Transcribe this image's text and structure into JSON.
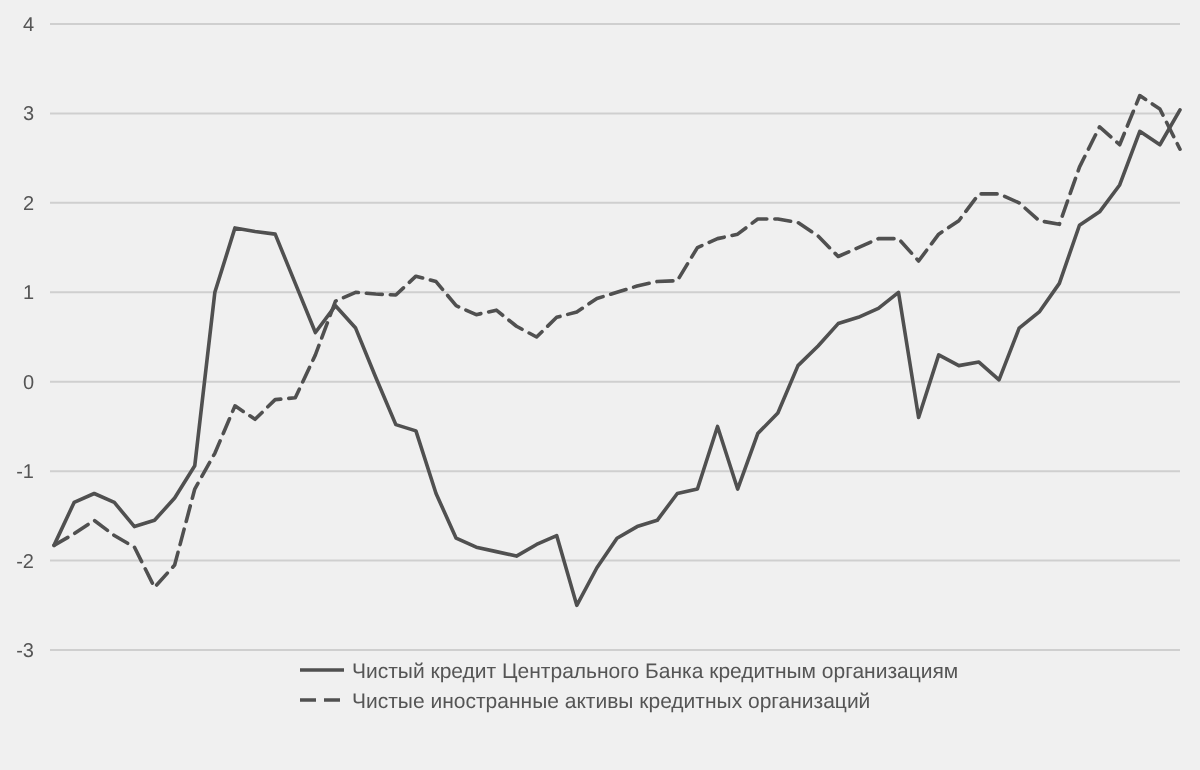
{
  "chart_data": {
    "type": "line",
    "categories": [
      null,
      null,
      null,
      null,
      null,
      null,
      null,
      null,
      null,
      null,
      null,
      null,
      null,
      null,
      null,
      null,
      null,
      null,
      null,
      null,
      null,
      null,
      null,
      null,
      null,
      null,
      null,
      null,
      null,
      null,
      null,
      null,
      null,
      null,
      null,
      null,
      null,
      null,
      null,
      null,
      null,
      null,
      null,
      null,
      null,
      null,
      null,
      null,
      null,
      null,
      null,
      null,
      null,
      null,
      null,
      null,
      null
    ],
    "series": [
      {
        "name": "Чистый кредит Центрального Банка кредитным организациям",
        "color": "#505050",
        "line_style": "solid",
        "values": [
          -1.83,
          -1.35,
          -1.25,
          -1.35,
          -1.62,
          -1.55,
          -1.3,
          -0.94,
          1.0,
          1.72,
          1.68,
          1.65,
          1.1,
          0.55,
          0.85,
          0.6,
          0.05,
          -0.48,
          -0.55,
          -1.25,
          -1.75,
          -1.85,
          -1.9,
          -1.95,
          -1.82,
          -1.72,
          -2.5,
          -2.08,
          -1.75,
          -1.62,
          -1.55,
          -1.25,
          -1.2,
          -0.5,
          -1.2,
          -0.58,
          -0.35,
          0.18,
          0.4,
          0.65,
          0.72,
          0.82,
          1.0,
          -0.4,
          0.3,
          0.18,
          0.22,
          0.02,
          0.6,
          0.78,
          1.1,
          1.75,
          1.9,
          2.2,
          2.8,
          2.65,
          3.04
        ]
      },
      {
        "name": "Чистые иностранные активы кредитных организаций",
        "color": "#505050",
        "line_style": "dashed",
        "values": [
          -1.83,
          -1.7,
          -1.55,
          -1.72,
          -1.85,
          -2.3,
          -2.05,
          -1.2,
          -0.8,
          -0.27,
          -0.42,
          -0.2,
          -0.18,
          0.3,
          0.9,
          1.0,
          0.98,
          0.97,
          1.18,
          1.12,
          0.85,
          0.75,
          0.8,
          0.62,
          0.5,
          0.72,
          0.78,
          0.93,
          1.0,
          1.07,
          1.12,
          1.13,
          1.5,
          1.6,
          1.65,
          1.82,
          1.82,
          1.78,
          1.63,
          1.4,
          1.5,
          1.6,
          1.6,
          1.35,
          1.65,
          1.8,
          2.1,
          2.1,
          2.0,
          1.8,
          1.76,
          2.4,
          2.85,
          2.65,
          3.2,
          3.05,
          2.6
        ]
      }
    ],
    "ylim": [
      -3,
      4
    ],
    "yticks": [
      -3,
      -2,
      -1,
      0,
      1,
      2,
      3,
      4
    ],
    "grid": "y",
    "legend": "bottom",
    "marker": "none"
  }
}
